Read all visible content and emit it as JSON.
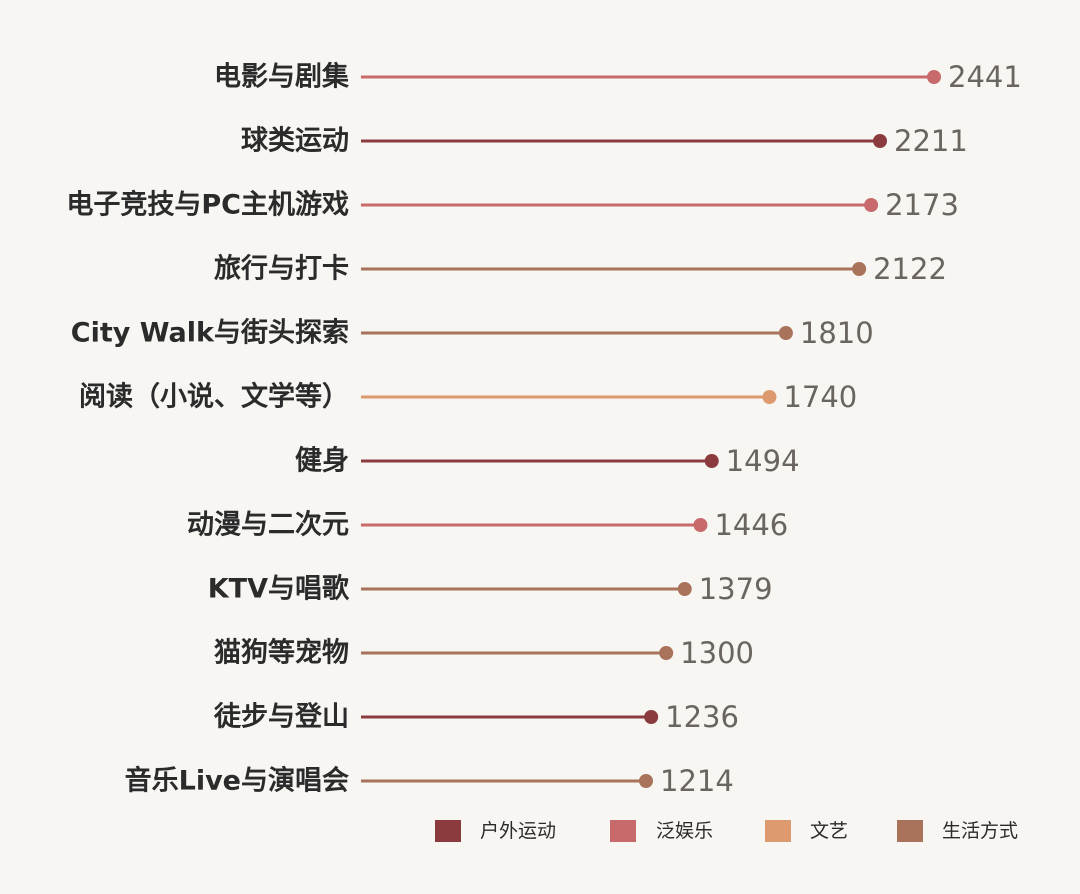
{
  "colors": {
    "background": "#f8f6f2",
    "户外运动": "#8b3a3e",
    "泛娱乐": "#c86a6c",
    "文艺": "#dc9a6e",
    "生活方式": "#a8735a"
  },
  "legend": {
    "items": [
      {
        "label": "户外运动",
        "color": "#8b3a3e"
      },
      {
        "label": "泛娱乐",
        "color": "#c86a6c"
      },
      {
        "label": "文艺",
        "color": "#dc9a6e"
      },
      {
        "label": "生活方式",
        "color": "#a8735a"
      }
    ]
  },
  "chart_data": {
    "type": "bar",
    "style": "lollipop",
    "orientation": "horizontal",
    "title": "",
    "xlabel": "",
    "ylabel": "",
    "grid": false,
    "legend_position": "bottom-right",
    "xlim": [
      0,
      2441
    ],
    "categories": [
      "电影与剧集",
      "球类运动",
      "电子竞技与PC主机游戏",
      "旅行与打卡",
      "City Walk与街头探索",
      "阅读（小说、文学等）",
      "健身",
      "动漫与二次元",
      "KTV与唱歌",
      "猫狗等宠物",
      "徒步与登山",
      "音乐Live与演唱会"
    ],
    "values": [
      2441,
      2211,
      2173,
      2122,
      1810,
      1740,
      1494,
      1446,
      1379,
      1300,
      1236,
      1214
    ],
    "groups": [
      "泛娱乐",
      "户外运动",
      "泛娱乐",
      "生活方式",
      "生活方式",
      "文艺",
      "户外运动",
      "泛娱乐",
      "生活方式",
      "生活方式",
      "户外运动",
      "生活方式"
    ]
  }
}
